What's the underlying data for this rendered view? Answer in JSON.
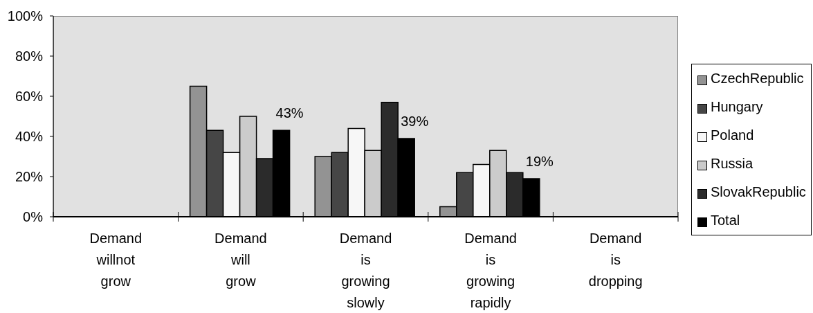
{
  "chart_data": {
    "type": "bar",
    "categories": [
      "Demand willnot grow",
      "Demand will grow",
      "Demand is growing slowly",
      "Demand is growing rapidly",
      "Demand is dropping"
    ],
    "ylim": [
      0,
      100
    ],
    "yticks": [
      {
        "value": 0,
        "label": "0%"
      },
      {
        "value": 20,
        "label": "20%"
      },
      {
        "value": 40,
        "label": "40%"
      },
      {
        "value": 60,
        "label": "60%"
      },
      {
        "value": 80,
        "label": "80%"
      },
      {
        "value": 100,
        "label": "100%"
      }
    ],
    "legend": "right",
    "series": [
      {
        "name": "CzechRepublic",
        "color": "#939393",
        "values": [
          null,
          65,
          30,
          5,
          null
        ]
      },
      {
        "name": "Hungary",
        "color": "#464646",
        "values": [
          null,
          43,
          32,
          22,
          null
        ]
      },
      {
        "name": "Poland",
        "color": "#f7f7f7",
        "values": [
          null,
          32,
          44,
          26,
          null
        ]
      },
      {
        "name": "Russia",
        "color": "#cbcbcb",
        "values": [
          null,
          50,
          33,
          33,
          null
        ]
      },
      {
        "name": "SlovakRepublic",
        "color": "#2b2b2b",
        "values": [
          null,
          29,
          57,
          22,
          null
        ]
      },
      {
        "name": "Total",
        "color": "#000000",
        "values": [
          null,
          43,
          39,
          19,
          null
        ],
        "value_labels": [
          null,
          "43%",
          "39%",
          "19%",
          null
        ]
      }
    ]
  }
}
